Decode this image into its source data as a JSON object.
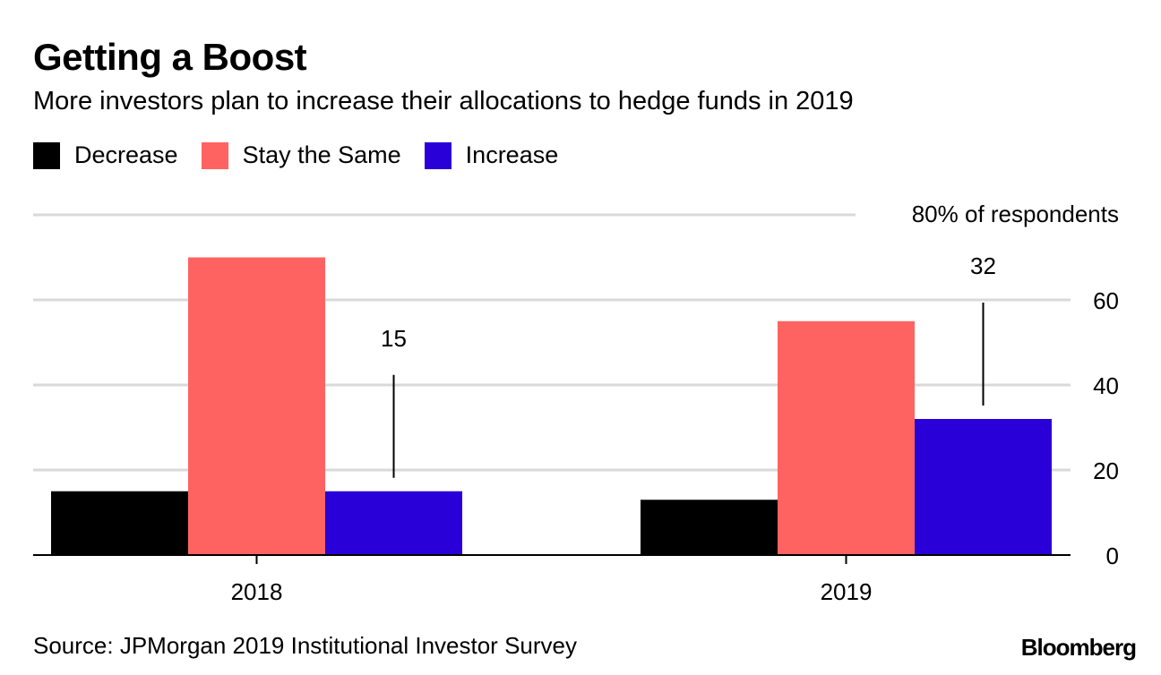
{
  "title": "Getting a Boost",
  "subtitle": "More investors plan to increase their allocations to hedge funds in 2019",
  "source": "Source: JPMorgan 2019 Institutional Investor Survey",
  "brand": "Bloomberg",
  "chart_data": {
    "type": "bar",
    "title": "Getting a Boost",
    "categories": [
      "2018",
      "2019"
    ],
    "series": [
      {
        "name": "Decrease",
        "color": "#000000",
        "values": [
          15,
          13
        ]
      },
      {
        "name": "Stay the Same",
        "color": "#ff6361",
        "values": [
          70,
          55
        ]
      },
      {
        "name": "Increase",
        "color": "#2a00d9",
        "values": [
          15,
          32
        ]
      }
    ],
    "annotations": [
      {
        "category": "2018",
        "series": "Increase",
        "label": "15"
      },
      {
        "category": "2019",
        "series": "Increase",
        "label": "32"
      }
    ],
    "ylim": [
      0,
      80
    ],
    "yticks": [
      0,
      20,
      40,
      60
    ],
    "top_tick_label": "80% of respondents",
    "ylabel": "",
    "grid": true,
    "legend": "top-left"
  }
}
